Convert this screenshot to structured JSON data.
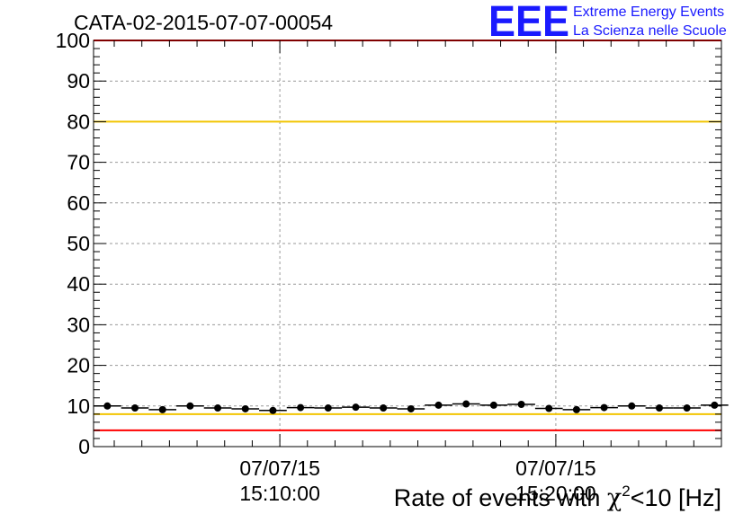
{
  "header": {
    "title": "CATA-02-2015-07-07-00054",
    "logo_text": "EEE",
    "logo_line1": "Extreme Energy Events",
    "logo_line2": "La Scienza nelle Scuole"
  },
  "colors": {
    "logo": "#1a1aff",
    "red_line": "#ff0000",
    "yellow_line": "#f2c500",
    "grid": "#9a9a9a",
    "points": "#000000"
  },
  "chart_data": {
    "type": "scatter",
    "title": "CATA-02-2015-07-07-00054",
    "xlabel_parts": [
      "Rate of events with ",
      "χ",
      "2",
      "<10 [Hz]"
    ],
    "ylabel": "",
    "ylim": [
      0,
      100
    ],
    "xlim": [
      "15:03:15",
      "15:26:00"
    ],
    "yticks": [
      0,
      10,
      20,
      30,
      40,
      50,
      60,
      70,
      80,
      90,
      100
    ],
    "xticks": [
      {
        "time": "15:10:00",
        "date": "07/07/15",
        "clock": "15:10:00"
      },
      {
        "time": "15:20:00",
        "date": "07/07/15",
        "clock": "15:20:00"
      }
    ],
    "grid": true,
    "reference_lines": [
      {
        "y": 100,
        "color": "red"
      },
      {
        "y": 80,
        "color": "yellow"
      },
      {
        "y": 8,
        "color": "yellow"
      },
      {
        "y": 4,
        "color": "red"
      }
    ],
    "series": [
      {
        "x": [
          "15:03:45",
          "15:04:45",
          "15:05:45",
          "15:06:45",
          "15:07:45",
          "15:08:45",
          "15:09:45",
          "15:10:45",
          "15:11:45",
          "15:12:45",
          "15:13:45",
          "15:14:45",
          "15:15:45",
          "15:16:45",
          "15:17:45",
          "15:18:45",
          "15:19:45",
          "15:20:45",
          "15:21:45",
          "15:22:45",
          "15:23:45",
          "15:24:45",
          "15:25:45"
        ],
        "y": [
          10.0,
          9.5,
          9.1,
          10.0,
          9.5,
          9.3,
          8.9,
          9.6,
          9.5,
          9.7,
          9.5,
          9.3,
          10.2,
          10.5,
          10.2,
          10.4,
          9.4,
          9.1,
          9.6,
          10.0,
          9.5,
          9.5,
          10.2
        ]
      }
    ]
  }
}
